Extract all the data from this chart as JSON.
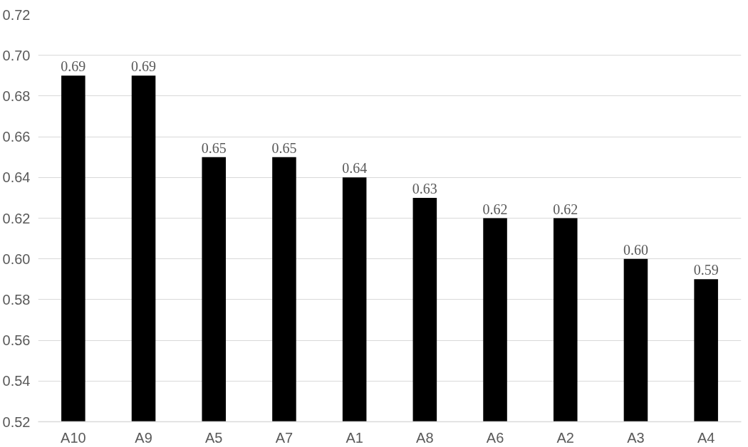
{
  "chart_data": {
    "type": "bar",
    "categories": [
      "A10",
      "A9",
      "A5",
      "A7",
      "A1",
      "A8",
      "A6",
      "A2",
      "A3",
      "A4"
    ],
    "values": [
      0.69,
      0.69,
      0.65,
      0.65,
      0.64,
      0.63,
      0.62,
      0.62,
      0.6,
      0.59
    ],
    "value_labels": [
      "0.69",
      "0.69",
      "0.65",
      "0.65",
      "0.64",
      "0.63",
      "0.62",
      "0.62",
      "0.60",
      "0.59"
    ],
    "color": "#000000",
    "ylim": [
      0.52,
      0.72
    ],
    "yticks": [
      {
        "value": 0.52,
        "label": "0.52"
      },
      {
        "value": 0.54,
        "label": "0.54"
      },
      {
        "value": 0.56,
        "label": "0.56"
      },
      {
        "value": 0.58,
        "label": "0.58"
      },
      {
        "value": 0.6,
        "label": "0.60"
      },
      {
        "value": 0.62,
        "label": "0.62"
      },
      {
        "value": 0.64,
        "label": "0.64"
      },
      {
        "value": 0.66,
        "label": "0.66"
      },
      {
        "value": 0.68,
        "label": "0.68"
      },
      {
        "value": 0.7,
        "label": "0.70"
      },
      {
        "value": 0.72,
        "label": "0.72"
      }
    ],
    "grid": "y"
  }
}
